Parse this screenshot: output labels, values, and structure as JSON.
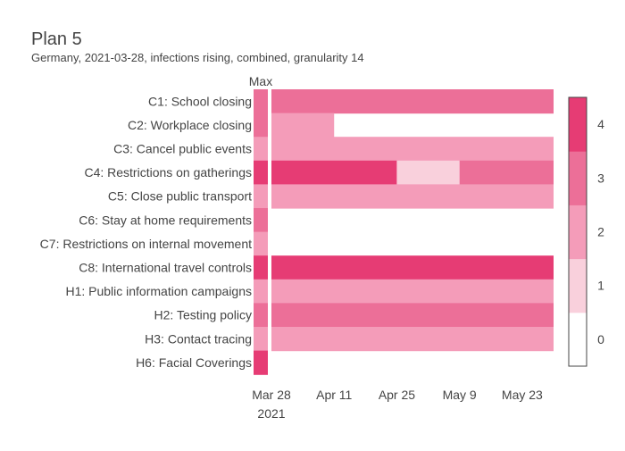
{
  "chart_data": {
    "type": "heatmap",
    "title": "Plan 5",
    "subtitle": "Germany, 2021-03-28, infections rising, combined, granularity 14",
    "max_column_label": "Max",
    "rows": [
      "C1: School closing",
      "C2: Workplace closing",
      "C3: Cancel public events",
      "C4: Restrictions on gatherings",
      "C5: Close public transport",
      "C6: Stay at home requirements",
      "C7: Restrictions on internal movement",
      "C8: International travel controls",
      "H1: Public information campaigns",
      "H2: Testing policy",
      "H3: Contact tracing",
      "H6: Facial Coverings"
    ],
    "max_values": [
      3,
      3,
      2,
      4,
      2,
      3,
      2,
      4,
      2,
      3,
      2,
      4
    ],
    "x_range": [
      "2021-03-28",
      "2021-05-30"
    ],
    "x_ticks": [
      {
        "date": "2021-03-28",
        "label": "Mar 28",
        "sublabel": "2021"
      },
      {
        "date": "2021-04-11",
        "label": "Apr 11",
        "sublabel": ""
      },
      {
        "date": "2021-04-25",
        "label": "Apr 25",
        "sublabel": ""
      },
      {
        "date": "2021-05-09",
        "label": "May 9",
        "sublabel": ""
      },
      {
        "date": "2021-05-23",
        "label": "May 23",
        "sublabel": ""
      }
    ],
    "segments": [
      {
        "row": "C1: School closing",
        "start": "2021-03-28",
        "end": "2021-05-30",
        "value": 3
      },
      {
        "row": "C2: Workplace closing",
        "start": "2021-03-28",
        "end": "2021-04-11",
        "value": 2
      },
      {
        "row": "C3: Cancel public events",
        "start": "2021-03-28",
        "end": "2021-05-30",
        "value": 2
      },
      {
        "row": "C4: Restrictions on gatherings",
        "start": "2021-03-28",
        "end": "2021-04-25",
        "value": 4
      },
      {
        "row": "C4: Restrictions on gatherings",
        "start": "2021-04-25",
        "end": "2021-05-09",
        "value": 1
      },
      {
        "row": "C4: Restrictions on gatherings",
        "start": "2021-05-09",
        "end": "2021-05-30",
        "value": 3
      },
      {
        "row": "C5: Close public transport",
        "start": "2021-03-28",
        "end": "2021-05-30",
        "value": 2
      },
      {
        "row": "C8: International travel controls",
        "start": "2021-03-28",
        "end": "2021-05-30",
        "value": 4
      },
      {
        "row": "H1: Public information campaigns",
        "start": "2021-03-28",
        "end": "2021-05-30",
        "value": 2
      },
      {
        "row": "H2: Testing policy",
        "start": "2021-03-28",
        "end": "2021-05-30",
        "value": 3
      },
      {
        "row": "H3: Contact tracing",
        "start": "2021-03-28",
        "end": "2021-05-30",
        "value": 2
      }
    ],
    "colorscale": {
      "levels": [
        0,
        1,
        2,
        3,
        4
      ],
      "colors": [
        "#ffffff",
        "#f9d0dc",
        "#f49cb9",
        "#ec6f98",
        "#e63c74"
      ],
      "tick_labels": [
        "0",
        "1",
        "2",
        "3",
        "4"
      ]
    }
  }
}
